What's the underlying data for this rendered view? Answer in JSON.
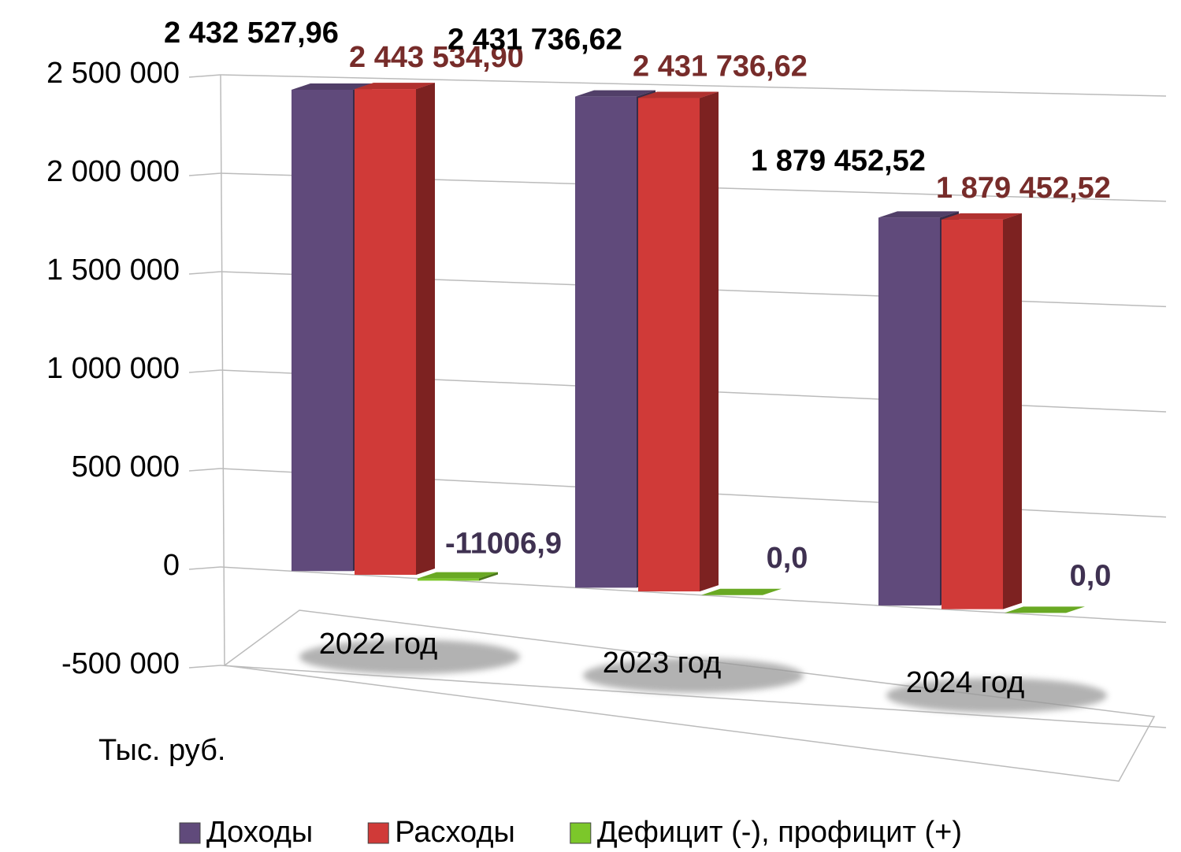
{
  "chart_data": {
    "type": "bar3d",
    "y_label": "Тыс. руб.",
    "categories": [
      "2022 год",
      "2023 год",
      "2024 год"
    ],
    "series": [
      {
        "name": "Доходы",
        "color": "#604a7b",
        "label_color": "#000000",
        "values": [
          2432527.96,
          2431736.62,
          1879452.52
        ],
        "value_labels": [
          "2 432 527,96",
          "2 431 736,62",
          "1 879 452,52"
        ]
      },
      {
        "name": "Расходы",
        "color": "#d03a38",
        "label_color": "#772c2a",
        "values": [
          2443534.9,
          2431736.62,
          1879452.52
        ],
        "value_labels": [
          "2 443 534,90",
          "2 431 736,62",
          "1 879 452,52"
        ]
      },
      {
        "name": "Дефицит (-), профицит (+)",
        "color": "#7cc72a",
        "label_color": "#3f3151",
        "values": [
          -11006.94,
          0,
          0
        ],
        "value_labels": [
          "-11006,9",
          "0,0",
          "0,0"
        ]
      }
    ],
    "ylim": [
      -500000,
      2500000
    ],
    "yticks": [
      {
        "value": -500000,
        "label": "-500 000"
      },
      0,
      {
        "value": 500000,
        "label": "500 000"
      },
      {
        "value": 1000000,
        "label": "1 000 000"
      },
      {
        "value": 1500000,
        "label": "1 500 000"
      },
      {
        "value": 2000000,
        "label": "2 000 000"
      },
      {
        "value": 2500000,
        "label": "2 500 000"
      }
    ],
    "grid": true
  }
}
